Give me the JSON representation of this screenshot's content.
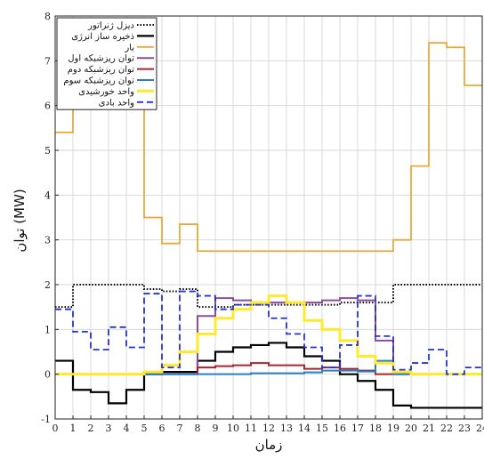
{
  "chart_data": {
    "type": "line",
    "step": true,
    "xlabel": "زمان",
    "ylabel": "توان (MW)",
    "xlim": [
      0,
      24
    ],
    "ylim": [
      -1,
      8
    ],
    "xticks": [
      0,
      1,
      2,
      3,
      4,
      5,
      6,
      7,
      8,
      9,
      10,
      11,
      12,
      13,
      14,
      15,
      16,
      17,
      18,
      19,
      20,
      21,
      22,
      23,
      24
    ],
    "xtick_labels": [
      "0",
      "1",
      "2",
      "3",
      "4",
      "5",
      "6",
      "7",
      "8",
      "9",
      "10",
      "11",
      "12",
      "13",
      "14",
      "15",
      "16",
      "17",
      "18",
      "19",
      "20",
      "21",
      "22",
      "23",
      "24"
    ],
    "yticks": [
      -1,
      0,
      1,
      2,
      3,
      4,
      5,
      6,
      7,
      8
    ],
    "ytick_labels": [
      "-1",
      "0",
      "1",
      "2",
      "3",
      "4",
      "5",
      "6",
      "7",
      "8"
    ],
    "grid": true,
    "legend_position": "top-left",
    "series": [
      {
        "name": "دیزل ژنراتور",
        "color": "#000000",
        "dash": "dot",
        "width": 2,
        "values": [
          1.5,
          2.0,
          2.0,
          2.0,
          2.0,
          1.9,
          1.85,
          1.9,
          1.5,
          1.5,
          1.55,
          1.55,
          1.55,
          1.55,
          1.55,
          1.55,
          1.6,
          1.6,
          1.6,
          2.0,
          2.0,
          2.0,
          2.0,
          2.0
        ]
      },
      {
        "name": "ذخیره ساز انرژی",
        "color": "#000000",
        "dash": "solid",
        "width": 2.2,
        "values": [
          0.3,
          -0.35,
          -0.4,
          -0.65,
          -0.35,
          0.0,
          0.05,
          0.05,
          0.3,
          0.5,
          0.6,
          0.65,
          0.7,
          0.6,
          0.4,
          0.3,
          0.0,
          -0.15,
          -0.35,
          -0.7,
          -0.75,
          -0.75,
          -0.75,
          -0.75
        ]
      },
      {
        "name": "بار",
        "color": "#e8a93a",
        "dash": "solid",
        "width": 1.8,
        "values": [
          5.4,
          7.3,
          7.3,
          7.3,
          7.3,
          3.5,
          2.92,
          3.35,
          2.75,
          2.75,
          2.75,
          2.75,
          2.75,
          2.75,
          2.75,
          2.75,
          2.75,
          2.75,
          2.75,
          3.0,
          4.65,
          7.4,
          7.3,
          6.45
        ]
      },
      {
        "name": "توان ریزشبکه اول",
        "color": "#8e4c9e",
        "dash": "solid",
        "width": 2,
        "values": [
          0,
          0,
          0,
          0,
          0,
          0,
          0,
          0,
          1.3,
          1.7,
          1.65,
          1.6,
          1.6,
          1.6,
          1.6,
          1.65,
          1.7,
          1.65,
          0.75,
          0,
          0,
          0,
          0,
          0
        ]
      },
      {
        "name": "توان ریزشبکه دوم",
        "color": "#a8262f",
        "dash": "solid",
        "width": 2,
        "values": [
          0,
          0,
          0,
          0,
          0,
          0,
          0,
          0,
          0.15,
          0.18,
          0.2,
          0.25,
          0.2,
          0.2,
          0.12,
          0.15,
          0.12,
          0.08,
          0.0,
          0,
          0,
          0,
          0,
          0
        ]
      },
      {
        "name": "توان ریزشبکه سوم",
        "color": "#2a7fc1",
        "dash": "solid",
        "width": 2,
        "values": [
          0,
          0,
          0,
          0,
          0,
          0,
          0,
          0,
          0,
          0,
          0.0,
          0.02,
          0.02,
          0.02,
          0.04,
          0.08,
          0.08,
          0.06,
          0.3,
          0,
          0,
          0,
          0,
          0
        ]
      },
      {
        "name": "واحد خورشیدی",
        "color": "#ffe92e",
        "dash": "solid",
        "width": 3,
        "values": [
          0,
          0,
          0,
          0,
          0,
          0.05,
          0.2,
          0.5,
          0.9,
          1.25,
          1.45,
          1.6,
          1.75,
          1.6,
          1.2,
          1.0,
          0.75,
          0.4,
          0.25,
          0.05,
          0,
          0,
          0,
          0
        ]
      },
      {
        "name": "واحد بادی",
        "color": "#2233dd",
        "dash": "dash",
        "width": 1.8,
        "values": [
          1.45,
          0.95,
          0.55,
          1.05,
          0.6,
          1.8,
          0.15,
          1.85,
          1.75,
          1.45,
          1.55,
          1.55,
          1.25,
          0.9,
          0.6,
          0.15,
          0.65,
          1.75,
          0.85,
          0.1,
          0.25,
          0.55,
          0.0,
          0.15
        ]
      }
    ]
  }
}
